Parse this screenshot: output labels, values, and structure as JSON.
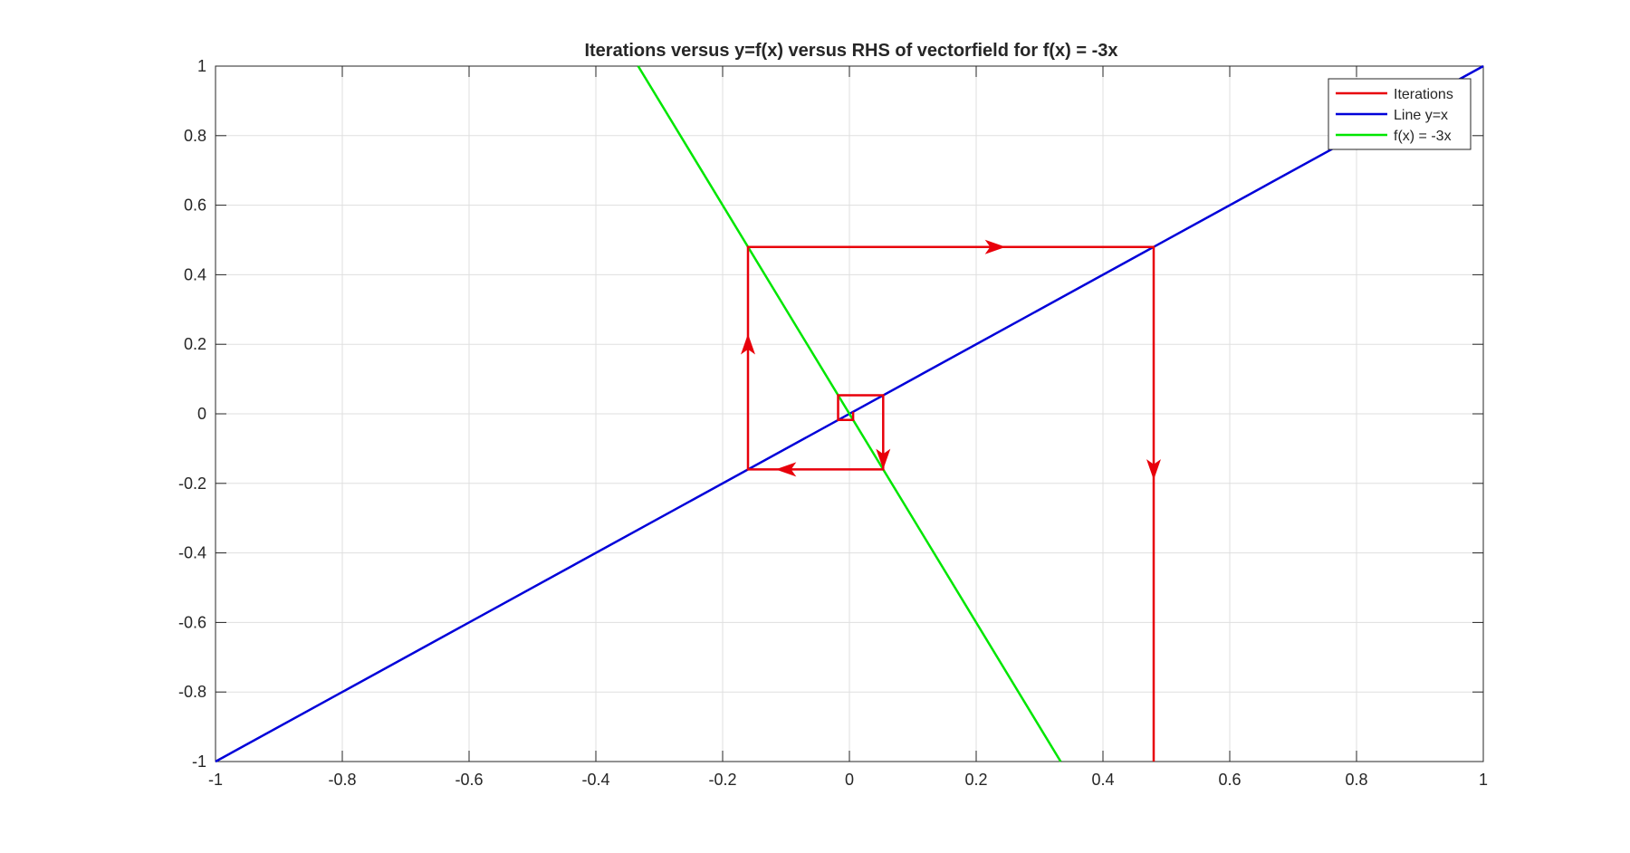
{
  "chart_data": {
    "type": "line",
    "title": "Iterations versus y=f(x) versus RHS of vectorfield for f(x) = -3x",
    "xlabel": "",
    "ylabel": "",
    "xlim": [
      -1,
      1
    ],
    "ylim": [
      -1,
      1
    ],
    "grid": true,
    "legend_position": "top-right",
    "x_ticks": [
      "-1",
      "-0.8",
      "-0.6",
      "-0.4",
      "-0.2",
      "0",
      "0.2",
      "0.4",
      "0.6",
      "0.8",
      "1"
    ],
    "y_ticks": [
      "1",
      "0.8",
      "0.6",
      "0.4",
      "0.2",
      "0",
      "-0.2",
      "-0.4",
      "-0.6",
      "-0.8",
      "-1"
    ],
    "series": [
      {
        "name": "Iterations",
        "color": "#e8000b",
        "x": [
          0.48,
          0.48,
          0.48,
          -0.16,
          -0.16,
          0.0533,
          0.0533,
          -0.0178,
          -0.0178,
          0.0059,
          0.0059
        ],
        "y": [
          -1,
          0.48,
          0.48,
          0.48,
          -0.16,
          -0.16,
          0.0533,
          0.0533,
          -0.0178,
          -0.0178,
          0.0059
        ],
        "arrows": [
          {
            "x": 0.48,
            "y": -0.16,
            "dir": "down"
          },
          {
            "x": 0.23,
            "y": 0.48,
            "dir": "right"
          },
          {
            "x": -0.16,
            "y": 0.2,
            "dir": "up"
          },
          {
            "x": -0.1,
            "y": -0.16,
            "dir": "left"
          },
          {
            "x": 0.0533,
            "y": -0.13,
            "dir": "down"
          }
        ]
      },
      {
        "name": "Line y=x",
        "color": "#0000d9",
        "x": [
          -1,
          1
        ],
        "y": [
          -1,
          1
        ]
      },
      {
        "name": "f(x) = -3x",
        "color": "#00e600",
        "x": [
          -0.3333,
          0.3333
        ],
        "y": [
          1,
          -1
        ]
      }
    ]
  }
}
